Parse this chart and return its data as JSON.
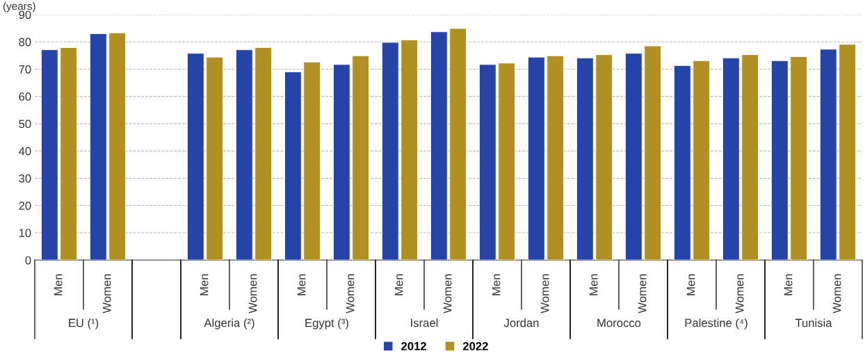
{
  "chart_data": {
    "type": "bar",
    "ylabel": "(years)",
    "categories": [
      "Men",
      "Women",
      null,
      "Men",
      "Women",
      "Men",
      "Women",
      "Men",
      "Women",
      "Men",
      "Women",
      "Men",
      "Women",
      "Men",
      "Women",
      "Men",
      "Women"
    ],
    "series": [
      {
        "name": "2012",
        "color": "#2644a8",
        "values": [
          77.1,
          83.0,
          null,
          75.8,
          77.1,
          69.0,
          71.7,
          79.8,
          83.7,
          71.7,
          74.4,
          74.1,
          75.8,
          71.3,
          74.1,
          73.1,
          77.3
        ]
      },
      {
        "name": "2022",
        "color": "#b09022",
        "values": [
          77.9,
          83.3,
          null,
          74.4,
          77.9,
          72.6,
          74.9,
          80.7,
          84.9,
          72.2,
          74.9,
          75.3,
          78.5,
          73.1,
          75.3,
          74.6,
          79.1
        ]
      }
    ],
    "annotations": [
      "EU (¹)",
      "Algeria (²)",
      "Egypt (³)",
      "Israel",
      "Jordan",
      "Morocco",
      "Palestine (⁴)",
      "Tunisia"
    ],
    "ylim": [
      0,
      90
    ],
    "yticks": [
      0,
      10,
      20,
      30,
      40,
      50,
      60,
      70,
      80,
      90
    ],
    "grid": "y",
    "legend": "bottom"
  }
}
